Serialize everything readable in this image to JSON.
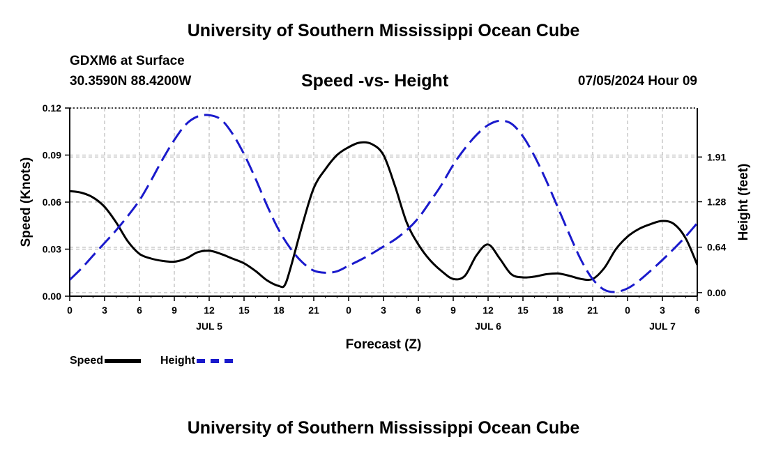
{
  "header": {
    "title_top": "University of Southern Mississippi Ocean Cube",
    "title_bottom": "University of Southern Mississippi Ocean Cube",
    "station": "GDXM6 at Surface",
    "latlon": "30.3590N  88.4200W",
    "chart_title": "Speed -vs- Height",
    "date": "07/05/2024 Hour 09"
  },
  "legend": {
    "speed_label": "Speed",
    "height_label": "Height"
  },
  "colors": {
    "speed": "#000000",
    "height": "#1a1acc",
    "grid": "#c0c0c0"
  },
  "chart_data": {
    "type": "line",
    "title": "Speed -vs- Height",
    "xlabel": "Forecast (Z)",
    "ylabel_left": "Speed (Knots)",
    "ylabel_right": "Height (feet)",
    "x_range_hours": [
      0,
      54
    ],
    "x_tick_hours": [
      0,
      3,
      6,
      9,
      12,
      15,
      18,
      21,
      24,
      27,
      30,
      33,
      36,
      39,
      42,
      45,
      48,
      51,
      54
    ],
    "x_tick_labels": [
      "0",
      "3",
      "6",
      "9",
      "12",
      "15",
      "18",
      "21",
      "0",
      "3",
      "6",
      "9",
      "12",
      "15",
      "18",
      "21",
      "0",
      "3",
      "6"
    ],
    "day_labels": [
      {
        "hour": 12,
        "label": "JUL 5"
      },
      {
        "hour": 36,
        "label": "JUL 6"
      },
      {
        "hour": 51,
        "label": "JUL 7"
      }
    ],
    "left_axis": {
      "ylim": [
        0,
        0.12
      ],
      "ticks": [
        0.0,
        0.03,
        0.06,
        0.09,
        0.12
      ],
      "tick_labels": [
        "0.00",
        "0.03",
        "0.06",
        "0.09",
        "0.12"
      ]
    },
    "right_axis": {
      "ylim": [
        -0.05,
        2.6
      ],
      "ticks": [
        0.0,
        0.64,
        1.28,
        1.91
      ],
      "tick_labels": [
        "0.00",
        "0.64",
        "1.28",
        "1.91"
      ]
    },
    "series": [
      {
        "name": "Speed",
        "axis": "left",
        "style": "solid",
        "x": [
          0,
          1,
          2,
          3,
          4,
          5,
          6,
          7,
          8,
          9,
          10,
          11,
          12,
          13,
          14,
          15,
          16,
          17,
          18,
          18.5,
          19,
          20,
          21,
          22,
          23,
          24,
          25,
          26,
          27,
          28,
          29,
          30,
          31,
          32,
          33,
          34,
          35,
          36,
          37,
          38,
          39,
          40,
          41,
          42,
          43,
          44,
          45,
          46,
          47,
          48,
          49,
          50,
          51,
          52,
          53,
          54
        ],
        "values": [
          0.067,
          0.066,
          0.063,
          0.057,
          0.047,
          0.035,
          0.027,
          0.024,
          0.0225,
          0.022,
          0.024,
          0.028,
          0.029,
          0.027,
          0.024,
          0.021,
          0.016,
          0.01,
          0.0065,
          0.007,
          0.018,
          0.045,
          0.069,
          0.081,
          0.09,
          0.095,
          0.098,
          0.097,
          0.09,
          0.07,
          0.047,
          0.033,
          0.023,
          0.016,
          0.011,
          0.013,
          0.026,
          0.033,
          0.024,
          0.014,
          0.012,
          0.0125,
          0.014,
          0.0145,
          0.013,
          0.011,
          0.011,
          0.018,
          0.03,
          0.038,
          0.043,
          0.046,
          0.048,
          0.046,
          0.037,
          0.02
        ]
      },
      {
        "name": "Height",
        "axis": "right",
        "style": "dashed",
        "x": [
          0,
          1,
          2,
          3,
          4,
          5,
          6,
          7,
          8,
          9,
          10,
          11,
          12,
          13,
          14,
          15,
          16,
          17,
          18,
          19,
          20,
          21,
          22,
          23,
          24,
          25,
          26,
          27,
          28,
          29,
          30,
          31,
          32,
          33,
          34,
          35,
          36,
          37,
          38,
          39,
          40,
          41,
          42,
          43,
          44,
          45,
          46,
          47,
          48,
          49,
          50,
          51,
          52,
          53,
          54
        ],
        "values": [
          0.18,
          0.34,
          0.52,
          0.7,
          0.88,
          1.08,
          1.3,
          1.58,
          1.88,
          2.15,
          2.37,
          2.48,
          2.5,
          2.44,
          2.24,
          1.95,
          1.6,
          1.22,
          0.88,
          0.62,
          0.43,
          0.31,
          0.28,
          0.3,
          0.38,
          0.46,
          0.55,
          0.65,
          0.75,
          0.88,
          1.05,
          1.28,
          1.52,
          1.8,
          2.03,
          2.22,
          2.36,
          2.42,
          2.38,
          2.2,
          1.92,
          1.58,
          1.2,
          0.82,
          0.46,
          0.19,
          0.04,
          0.01,
          0.06,
          0.17,
          0.31,
          0.46,
          0.62,
          0.79,
          0.98
        ]
      }
    ]
  }
}
